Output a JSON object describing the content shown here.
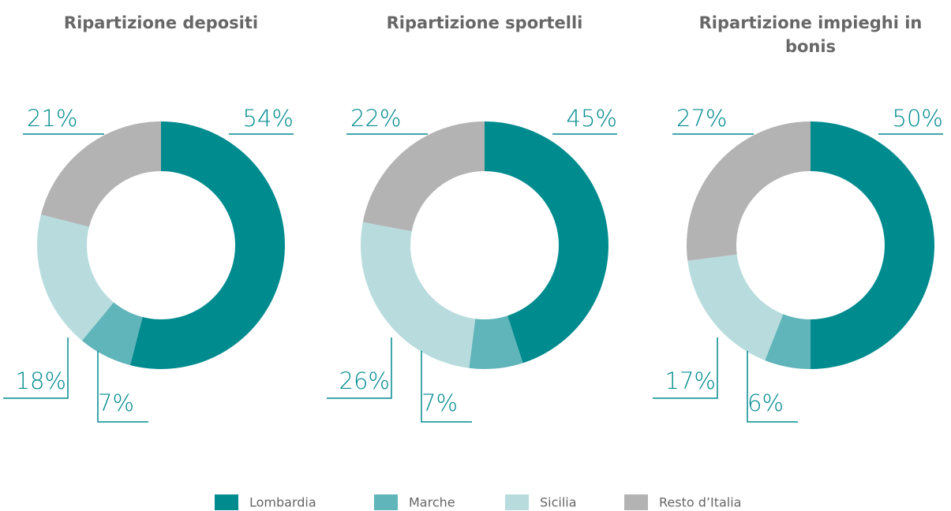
{
  "chart_data": [
    {
      "type": "pie",
      "title": "Ripartizione depositi",
      "categories": [
        "Lombardia",
        "Marche",
        "Sicilia",
        "Resto d’Italia"
      ],
      "values": [
        54,
        7,
        18,
        21
      ],
      "value_labels": [
        "54%",
        "7%",
        "18%",
        "21%"
      ],
      "colors": [
        "#008b8f",
        "#5fb5ba",
        "#b8dcde",
        "#b3b3b3"
      ],
      "donut": true,
      "legend": "bottom"
    },
    {
      "type": "pie",
      "title": "Ripartizione sportelli",
      "categories": [
        "Lombardia",
        "Marche",
        "Sicilia",
        "Resto d’Italia"
      ],
      "values": [
        45,
        7,
        26,
        22
      ],
      "value_labels": [
        "45%",
        "7%",
        "26%",
        "22%"
      ],
      "colors": [
        "#008b8f",
        "#5fb5ba",
        "#b8dcde",
        "#b3b3b3"
      ],
      "donut": true,
      "legend": "bottom"
    },
    {
      "type": "pie",
      "title": "Ripartizione impieghi in bonis",
      "categories": [
        "Lombardia",
        "Marche",
        "Sicilia",
        "Resto d’Italia"
      ],
      "values": [
        50,
        6,
        17,
        27
      ],
      "value_labels": [
        "50%",
        "6%",
        "17%",
        "27%"
      ],
      "colors": [
        "#008b8f",
        "#5fb5ba",
        "#b8dcde",
        "#b3b3b3"
      ],
      "donut": true,
      "legend": "bottom"
    }
  ]
}
